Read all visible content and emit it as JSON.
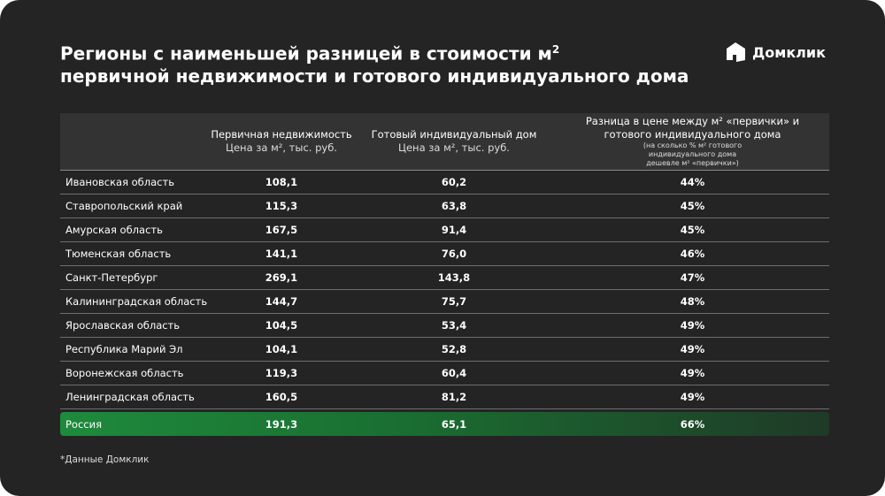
{
  "title": {
    "line1": "Регионы с наименьшей разницей в стоимости м",
    "sup": "2",
    "line2": "первичной недвижимости и готового индивидуального дома"
  },
  "logo": {
    "text": "Домклик"
  },
  "table": {
    "headers": [
      {
        "title": "Первичная недвижимость",
        "sub": "Цена за м², тыс. руб."
      },
      {
        "title": "Готовый индивидуальный дом",
        "sub": "Цена за  м², тыс. руб."
      },
      {
        "title": "Разница в цене между м² «первички» и готового индивидуального дома",
        "sub": "(на сколько % м² готового индивидуального дома дешевле м² «первички»)"
      }
    ],
    "rows": [
      {
        "region": "Ивановская область",
        "primary": "108,1",
        "house": "60,2",
        "diff": "44%"
      },
      {
        "region": "Ставропольский край",
        "primary": "115,3",
        "house": "63,8",
        "diff": "45%"
      },
      {
        "region": "Амурская область",
        "primary": "167,5",
        "house": "91,4",
        "diff": "45%"
      },
      {
        "region": "Тюменская область",
        "primary": "141,1",
        "house": "76,0",
        "diff": "46%"
      },
      {
        "region": "Санкт-Петербург",
        "primary": "269,1",
        "house": "143,8",
        "diff": "47%"
      },
      {
        "region": "Калининградская область",
        "primary": "144,7",
        "house": "75,7",
        "diff": "48%"
      },
      {
        "region": "Ярославская область",
        "primary": "104,5",
        "house": "53,4",
        "diff": "49%"
      },
      {
        "region": "Республика Марий Эл",
        "primary": "104,1",
        "house": "52,8",
        "diff": "49%"
      },
      {
        "region": "Воронежская область",
        "primary": "119,3",
        "house": "60,4",
        "diff": "49%"
      },
      {
        "region": "Ленинградская область",
        "primary": "160,5",
        "house": "81,2",
        "diff": "49%"
      }
    ],
    "total": {
      "region": "Россия",
      "primary": "191,3",
      "house": "65,1",
      "diff": "66%"
    }
  },
  "footnote": "*Данные Домклик",
  "colors": {
    "background": "#242424",
    "header": "#333333",
    "accent": "#1e8a3c"
  }
}
